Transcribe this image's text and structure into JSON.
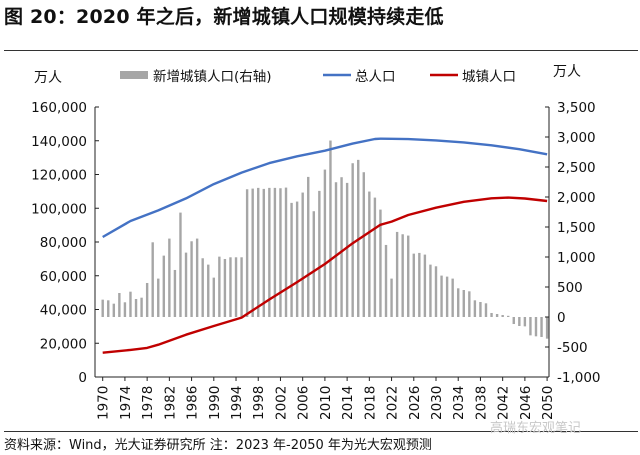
{
  "title": "图 20：2020 年之后，新增城镇人口规模持续走低",
  "source": "资料来源：Wind，光大证券研究所  注：2023 年-2050 年为光大宏观预测",
  "watermark": "高瑞东宏观笔记",
  "chart_data": {
    "type": "bar+line",
    "title": "",
    "left_unit": "万人",
    "right_unit": "万人",
    "legend_position": "top",
    "grid": false,
    "left_ylim": [
      0,
      160000
    ],
    "left_ticks": [
      "0",
      "20,000",
      "40,000",
      "60,000",
      "80,000",
      "100,000",
      "120,000",
      "140,000",
      "160,000"
    ],
    "right_ylim": [
      -1000,
      3500
    ],
    "right_ticks": [
      "-1,000",
      "-500",
      "0",
      "500",
      "1,000",
      "1,500",
      "2,000",
      "2,500",
      "3,000",
      "3,500"
    ],
    "x_ticks": [
      "1970",
      "1974",
      "1978",
      "1982",
      "1986",
      "1990",
      "1994",
      "1998",
      "2002",
      "2006",
      "2010",
      "2014",
      "2018",
      "2022",
      "2026",
      "2030",
      "2034",
      "2038",
      "2042",
      "2046",
      "2050"
    ],
    "colors": {
      "bar": "#a6a6a6",
      "total": "#4472c4",
      "urban": "#c00000"
    },
    "years": [
      1970,
      1971,
      1972,
      1973,
      1974,
      1975,
      1976,
      1977,
      1978,
      1979,
      1980,
      1981,
      1982,
      1983,
      1984,
      1985,
      1986,
      1987,
      1988,
      1989,
      1990,
      1991,
      1992,
      1993,
      1994,
      1995,
      1996,
      1997,
      1998,
      1999,
      2000,
      2001,
      2002,
      2003,
      2004,
      2005,
      2006,
      2007,
      2008,
      2009,
      2010,
      2011,
      2012,
      2013,
      2014,
      2015,
      2016,
      2017,
      2018,
      2019,
      2020,
      2021,
      2022,
      2023,
      2024,
      2025,
      2026,
      2027,
      2028,
      2029,
      2030,
      2031,
      2032,
      2033,
      2034,
      2035,
      2036,
      2037,
      2038,
      2039,
      2040,
      2041,
      2042,
      2043,
      2044,
      2045,
      2046,
      2047,
      2048,
      2049,
      2050
    ],
    "series": [
      {
        "name": "新增城镇人口(右轴)",
        "type": "bar",
        "axis": "right",
        "values": [
          289,
          278,
          222,
          400,
          245,
          422,
          300,
          322,
          567,
          1245,
          640,
          1023,
          1307,
          784,
          1740,
          1073,
          1262,
          1307,
          979,
          873,
          656,
          1006,
          967,
          995,
          995,
          995,
          2129,
          2140,
          2152,
          2135,
          2152,
          2152,
          2146,
          2157,
          1902,
          1924,
          2074,
          2335,
          1763,
          2102,
          2457,
          2941,
          2246,
          2330,
          2235,
          2563,
          2619,
          2413,
          2091,
          1990,
          1790,
          1201,
          640,
          1418,
          1379,
          1357,
          1056,
          1068,
          1040,
          873,
          845,
          690,
          673,
          640,
          478,
          450,
          428,
          278,
          250,
          228,
          67,
          50,
          33,
          20,
          -117,
          -150,
          -156,
          -306,
          -322,
          -333,
          -361
        ]
      },
      {
        "name": "总人口",
        "type": "line",
        "axis": "left",
        "points": [
          [
            1970,
            82992
          ],
          [
            1975,
            92420
          ],
          [
            1980,
            98705
          ],
          [
            1985,
            105851
          ],
          [
            1990,
            114333
          ],
          [
            1995,
            121121
          ],
          [
            2000,
            126743
          ],
          [
            2005,
            130756
          ],
          [
            2010,
            134091
          ],
          [
            2015,
            138326
          ],
          [
            2019,
            141008
          ],
          [
            2020,
            141212
          ],
          [
            2022,
            141175
          ],
          [
            2025,
            141000
          ],
          [
            2030,
            140200
          ],
          [
            2035,
            139000
          ],
          [
            2040,
            137300
          ],
          [
            2045,
            135000
          ],
          [
            2050,
            132000
          ]
        ]
      },
      {
        "name": "城镇人口",
        "type": "line",
        "axis": "left",
        "points": [
          [
            1970,
            14424
          ],
          [
            1975,
            16030
          ],
          [
            1978,
            17245
          ],
          [
            1980,
            19140
          ],
          [
            1985,
            25094
          ],
          [
            1990,
            30195
          ],
          [
            1995,
            35174
          ],
          [
            2000,
            45906
          ],
          [
            2005,
            56212
          ],
          [
            2010,
            66978
          ],
          [
            2015,
            79302
          ],
          [
            2020,
            90220
          ],
          [
            2022,
            92071
          ],
          [
            2025,
            96000
          ],
          [
            2030,
            100300
          ],
          [
            2035,
            103800
          ],
          [
            2040,
            105900
          ],
          [
            2043,
            106300
          ],
          [
            2046,
            105800
          ],
          [
            2050,
            104300
          ]
        ]
      }
    ]
  }
}
